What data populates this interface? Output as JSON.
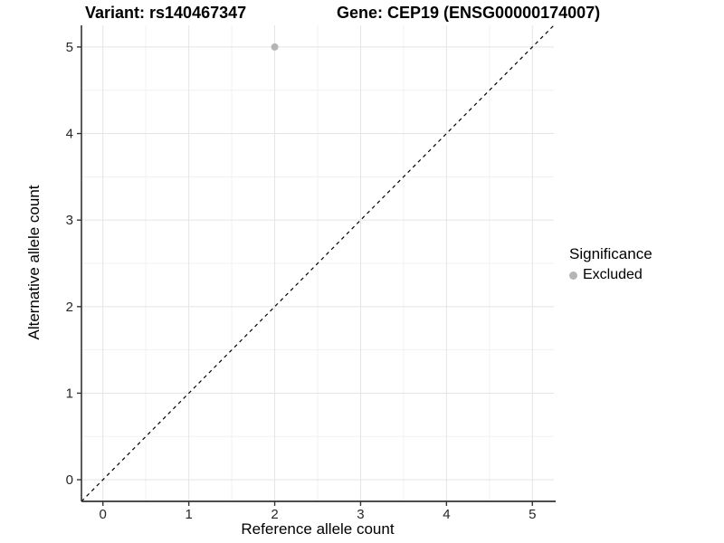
{
  "titles": {
    "variant": "Variant: rs140467347",
    "gene": "Gene: CEP19 (ENSG00000174007)"
  },
  "chart_data": {
    "type": "scatter",
    "title_left": "Variant: rs140467347",
    "title_right": "Gene: CEP19 (ENSG00000174007)",
    "xlabel": "Reference allele count",
    "ylabel": "Alternative allele count",
    "xlim": [
      -0.25,
      5.25
    ],
    "ylim": [
      -0.25,
      5.25
    ],
    "xticks": [
      0,
      1,
      2,
      3,
      4,
      5
    ],
    "yticks": [
      0,
      1,
      2,
      3,
      4,
      5
    ],
    "minor_ticks": [
      0.5,
      1.5,
      2.5,
      3.5,
      4.5
    ],
    "grid": true,
    "points": [
      {
        "x": 2,
        "y": 5,
        "series": "Excluded"
      }
    ],
    "reference_line": {
      "type": "identity",
      "slope": 1,
      "intercept": 0,
      "style": "dashed",
      "color": "#000000"
    },
    "legend": {
      "title": "Significance",
      "position": "right",
      "items": [
        {
          "label": "Excluded",
          "color": "#b5b5b5"
        }
      ]
    },
    "colors": {
      "point": "#b5b5b5",
      "grid_major": "#e4e4e4",
      "grid_minor": "#f1f1f1",
      "axis_line": "#333333",
      "tick_mark": "#333333",
      "tick_label": "#262626",
      "background": "#ffffff"
    }
  }
}
